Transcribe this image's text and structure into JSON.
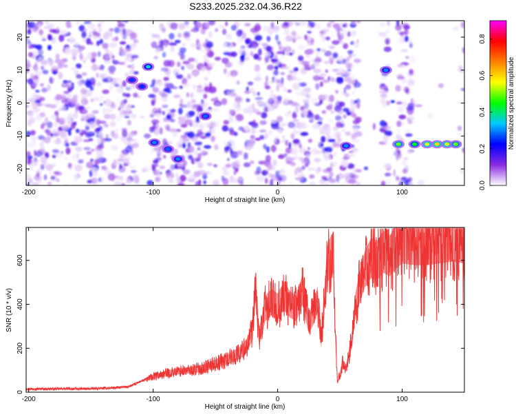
{
  "figure": {
    "title": "S233.2025.232.04.36.R22"
  },
  "chart_data": [
    {
      "type": "heatmap",
      "xlabel": "Height of straight line (km)",
      "ylabel": "Frequency (Hz)",
      "xlim": [
        -202,
        150
      ],
      "ylim": [
        -25,
        25
      ],
      "xticks": [
        -200,
        -100,
        0,
        100
      ],
      "yticks": [
        -20,
        -10,
        0,
        10,
        20
      ],
      "grid": false,
      "colorbar": {
        "label": "Normalized spectral amplitude",
        "range": [
          0,
          0.9
        ],
        "ticks": [
          0.0,
          0.2,
          0.4,
          0.6,
          0.8
        ],
        "colormap": [
          "#ffffff",
          "#8a2be2",
          "#0000ff",
          "#00c8ff",
          "#00ff00",
          "#ffff00",
          "#ff8000",
          "#ff0000",
          "#ff00ff"
        ]
      },
      "blank_regions_x": [
        [
          -113,
          -101
        ],
        [
          -48,
          -43
        ],
        [
          65,
          84
        ],
        [
          89,
          96
        ],
        [
          108,
          149
        ]
      ],
      "bright_features": [
        {
          "x": -104,
          "y": 11,
          "value": 0.35
        },
        {
          "x": -117,
          "y": 7,
          "value": 0.25
        },
        {
          "x": -109,
          "y": 5,
          "value": 0.25
        },
        {
          "x": -99,
          "y": -12,
          "value": 0.3
        },
        {
          "x": -88,
          "y": -14,
          "value": 0.28
        },
        {
          "x": -80,
          "y": -17,
          "value": 0.3
        },
        {
          "x": -58,
          "y": -4,
          "value": 0.28
        },
        {
          "x": 55,
          "y": -13,
          "value": 0.3
        },
        {
          "x": 87,
          "y": 10,
          "value": 0.3
        },
        {
          "x": 97,
          "y": -12.5,
          "value": 0.5
        },
        {
          "x": 110,
          "y": -12.5,
          "value": 0.45
        },
        {
          "x": 120,
          "y": -12.5,
          "value": 0.55
        },
        {
          "x": 128,
          "y": -12.5,
          "value": 0.6
        },
        {
          "x": 136,
          "y": -12.5,
          "value": 0.55
        },
        {
          "x": 143,
          "y": -12.5,
          "value": 0.5
        }
      ]
    },
    {
      "type": "line",
      "xlabel": "Height of straight line (km)",
      "ylabel": "SNR (10 * v/v)",
      "xlim": [
        -202,
        150
      ],
      "ylim": [
        0,
        750
      ],
      "xticks": [
        -200,
        -100,
        0,
        100
      ],
      "yticks": [
        0,
        200,
        400,
        600
      ],
      "grid": false,
      "series": [
        {
          "color": "#ee3333",
          "x": [
            -202,
            -190,
            -180,
            -170,
            -160,
            -150,
            -140,
            -130,
            -120,
            -115,
            -110,
            -100,
            -90,
            -80,
            -70,
            -60,
            -50,
            -40,
            -30,
            -25,
            -20,
            -18,
            -15,
            -12,
            -10,
            -5,
            0,
            5,
            10,
            15,
            20,
            25,
            30,
            32,
            35,
            40,
            45,
            46,
            48,
            50,
            52,
            55,
            60,
            62,
            65,
            70,
            75,
            80,
            85,
            90,
            95,
            100,
            110,
            120,
            130,
            140,
            150
          ],
          "y": [
            15,
            15,
            15,
            16,
            15,
            16,
            18,
            20,
            25,
            35,
            50,
            70,
            85,
            95,
            100,
            110,
            130,
            150,
            180,
            210,
            280,
            480,
            250,
            320,
            380,
            410,
            390,
            440,
            400,
            380,
            470,
            310,
            380,
            420,
            240,
            590,
            640,
            310,
            40,
            80,
            130,
            110,
            250,
            380,
            460,
            560,
            610,
            600,
            640,
            620,
            660,
            690,
            680,
            680,
            690,
            700,
            690
          ]
        }
      ]
    }
  ]
}
